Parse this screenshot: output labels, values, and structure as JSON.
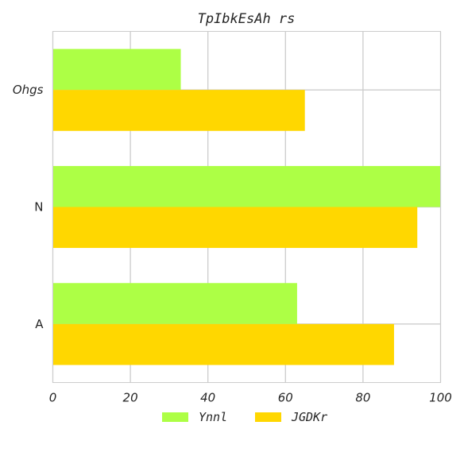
{
  "chart_data": {
    "type": "bar",
    "orientation": "horizontal",
    "title": "TpIbkEsAh rs",
    "xlabel": "",
    "ylabel": "",
    "categories": [
      "Ohgs",
      "N",
      "A"
    ],
    "series": [
      {
        "name": "Ynnl",
        "color": "#adff45",
        "values": [
          33,
          100,
          63
        ]
      },
      {
        "name": "JGDKr",
        "color": "#ffd700",
        "values": [
          65,
          94,
          88
        ]
      }
    ],
    "xlim": [
      0,
      100
    ],
    "xticks": [
      "0",
      "20",
      "40",
      "60",
      "80",
      "100"
    ],
    "grid": true,
    "legend_position": "bottom-center"
  }
}
